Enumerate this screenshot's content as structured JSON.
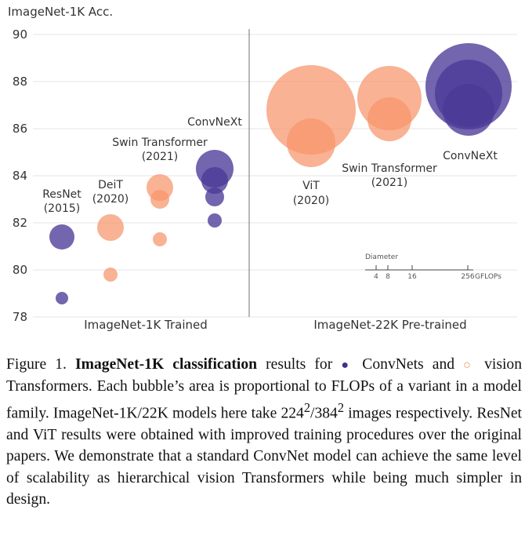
{
  "chart_data": {
    "type": "bubble",
    "ylabel": "ImageNet-1K Acc.",
    "ylim": [
      78,
      90
    ],
    "yticks": [
      78,
      80,
      82,
      84,
      86,
      88,
      90
    ],
    "panels": [
      "ImageNet-1K Trained",
      "ImageNet-22K Pre-trained"
    ],
    "colors": {
      "convnet": "#4b3a97",
      "transformer": "#f7946a"
    },
    "series": [
      {
        "panel": 0,
        "kind": "convnet",
        "label": [
          "ResNet",
          "(2015)"
        ],
        "accuracy": [
          78.8,
          81.4
        ]
      },
      {
        "panel": 0,
        "kind": "transformer",
        "label": [
          "DeiT",
          "(2020)"
        ],
        "accuracy": [
          79.8,
          81.8
        ]
      },
      {
        "panel": 0,
        "kind": "transformer",
        "label": [
          "Swin Transformer",
          "(2021)"
        ],
        "accuracy": [
          81.3,
          83.0,
          83.5
        ]
      },
      {
        "panel": 0,
        "kind": "convnet",
        "label": [
          "ConvNeXt"
        ],
        "accuracy": [
          82.1,
          83.1,
          83.8,
          84.3
        ]
      },
      {
        "panel": 1,
        "kind": "transformer",
        "label": [
          "ViT",
          "(2020)"
        ],
        "accuracy": [
          85.4,
          86.8
        ]
      },
      {
        "panel": 1,
        "kind": "transformer",
        "label": [
          "Swin Transformer",
          "(2021)"
        ],
        "accuracy": [
          86.4,
          87.3
        ]
      },
      {
        "panel": 1,
        "kind": "convnet",
        "label": [
          "ConvNeXt"
        ],
        "accuracy": [
          86.8,
          87.5,
          87.8
        ]
      }
    ],
    "size_legend": {
      "title": "Diameter",
      "ticks": [
        "4",
        "8",
        "16",
        "256"
      ],
      "unit": "GFLOPs"
    }
  },
  "caption": {
    "prefix": "Figure 1.",
    "bold": "ImageNet-1K classification",
    "part1": "results for",
    "convnets": "ConvNets and",
    "part2": "vision Transformers. Each bubble’s area is proportional to FLOPs of a variant in a model family.  ImageNet-1K/22K models here take 224",
    "sup1": "2",
    "slash": "/384",
    "sup2": "2",
    "part3": "images respectively. ResNet and ViT results were obtained with improved training procedures over the original papers. We demonstrate that a standard ConvNet model can achieve the same level of scalability as hierarchical vision Transformers while being much simpler in design."
  }
}
